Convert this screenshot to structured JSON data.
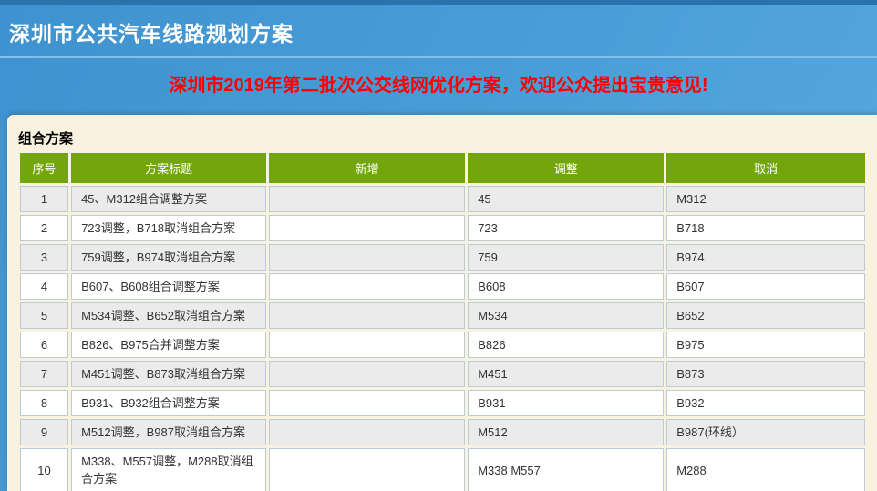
{
  "header": {
    "title": "深圳市公共汽车线路规划方案"
  },
  "notice": {
    "text": "深圳市2019年第二批次公交线网优化方案，欢迎公众提出宝贵意见!"
  },
  "section": {
    "title": "组合方案"
  },
  "table": {
    "headers": [
      "序号",
      "方案标题",
      "新增",
      "调整",
      "取消"
    ],
    "rows": [
      {
        "no": "1",
        "title": "45、M312组合调整方案",
        "add": "",
        "adjust": "45",
        "cancel": "M312"
      },
      {
        "no": "2",
        "title": "723调整，B718取消组合方案",
        "add": "",
        "adjust": "723",
        "cancel": "B718"
      },
      {
        "no": "3",
        "title": "759调整，B974取消组合方案",
        "add": "",
        "adjust": "759",
        "cancel": "B974"
      },
      {
        "no": "4",
        "title": "B607、B608组合调整方案",
        "add": "",
        "adjust": "B608",
        "cancel": "B607"
      },
      {
        "no": "5",
        "title": "M534调整、B652取消组合方案",
        "add": "",
        "adjust": "M534",
        "cancel": "B652"
      },
      {
        "no": "6",
        "title": "B826、B975合并调整方案",
        "add": "",
        "adjust": "B826",
        "cancel": "B975"
      },
      {
        "no": "7",
        "title": "M451调整、B873取消组合方案",
        "add": "",
        "adjust": "M451",
        "cancel": "B873"
      },
      {
        "no": "8",
        "title": "B931、B932组合调整方案",
        "add": "",
        "adjust": "B931",
        "cancel": "B932"
      },
      {
        "no": "9",
        "title": "M512调整，B987取消组合方案",
        "add": "",
        "adjust": "M512",
        "cancel": "B987(环线）"
      },
      {
        "no": "10",
        "title": "M338、M557调整，M288取消组合方案",
        "add": "",
        "adjust": "M338 M557",
        "cancel": "M288"
      }
    ]
  },
  "colors": {
    "top_strip_blue": "#2a72ab",
    "header_blue": "#4b9fd8",
    "separator_light_blue": "#7ec2eb",
    "notice_red": "#ff0000",
    "card_cream": "#f9f2de",
    "table_header_green": "#72a60b",
    "row_alt_gray": "#ebebeb",
    "cell_border": "#b9ccd8"
  }
}
